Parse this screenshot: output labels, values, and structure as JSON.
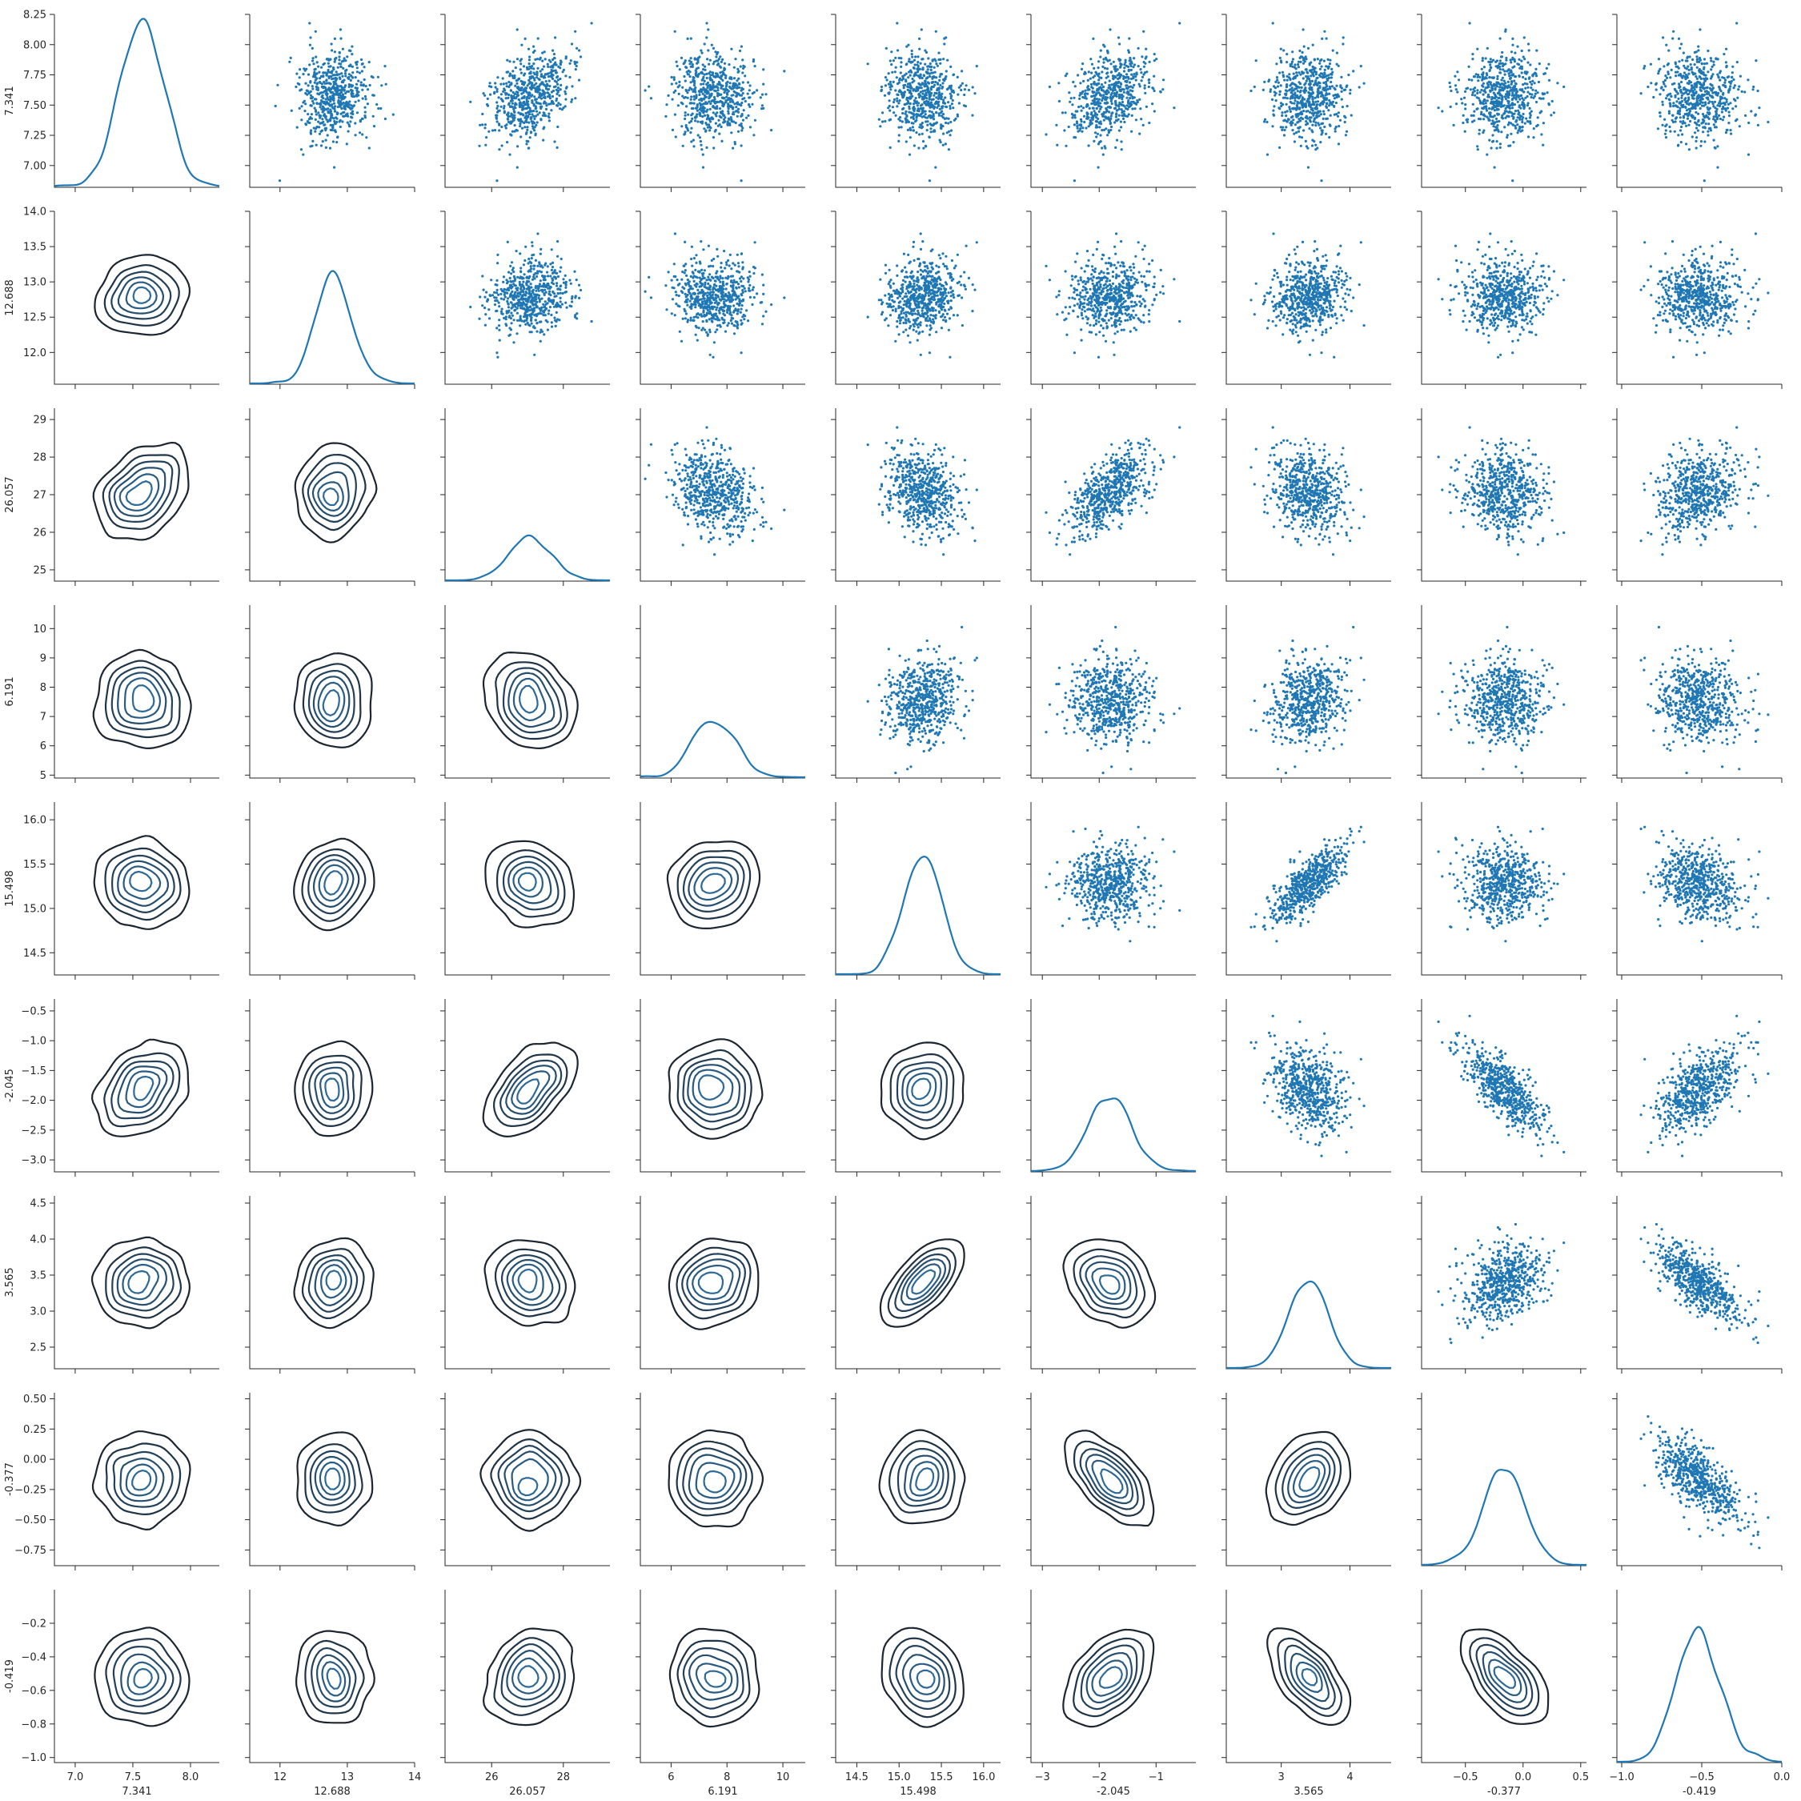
{
  "chart_data": {
    "type": "scatter",
    "variables": [
      {
        "label": "7.341",
        "lim": [
          6.82,
          8.25
        ],
        "ticks": [
          7.0,
          7.5,
          8.0
        ],
        "tick_labels": [
          "7.0",
          "7.5",
          "8.0"
        ],
        "yticks": [
          7.0,
          7.25,
          7.5,
          7.75,
          8.0,
          8.25
        ],
        "ytick_labels": [
          "7.00",
          "7.25",
          "7.50",
          "7.75",
          "8.00",
          "8.25"
        ],
        "mean": 7.58,
        "sd": 0.18
      },
      {
        "label": "12.688",
        "lim": [
          11.55,
          14.0
        ],
        "ticks": [
          12,
          13,
          14
        ],
        "tick_labels": [
          "12",
          "13",
          "14"
        ],
        "yticks": [
          12.0,
          12.5,
          13.0,
          13.5,
          14.0
        ],
        "ytick_labels": [
          "12.0",
          "12.5",
          "13.0",
          "13.5",
          "14.0"
        ],
        "mean": 12.78,
        "sd": 0.28
      },
      {
        "label": "26.057",
        "lim": [
          24.7,
          29.3
        ],
        "ticks": [
          26,
          28
        ],
        "tick_labels": [
          "26",
          "28"
        ],
        "yticks": [
          25,
          26,
          27,
          28,
          29
        ],
        "ytick_labels": [
          "25",
          "26",
          "27",
          "28",
          "29"
        ],
        "mean": 27.1,
        "sd": 0.55
      },
      {
        "label": "6.191",
        "lim": [
          4.9,
          10.8
        ],
        "ticks": [
          6,
          8,
          10
        ],
        "tick_labels": [
          "6",
          "8",
          "10"
        ],
        "yticks": [
          5,
          6,
          7,
          8,
          9,
          10
        ],
        "ytick_labels": [
          "5",
          "6",
          "7",
          "8",
          "9",
          "10"
        ],
        "mean": 7.5,
        "sd": 0.75
      },
      {
        "label": "15.498",
        "lim": [
          14.25,
          16.2
        ],
        "ticks": [
          14.5,
          15.0,
          15.5,
          16.0
        ],
        "tick_labels": [
          "14.5",
          "15.0",
          "15.5",
          "16.0"
        ],
        "yticks": [
          14.5,
          15.0,
          15.5,
          16.0
        ],
        "ytick_labels": [
          "14.5",
          "15.0",
          "15.5",
          "16.0"
        ],
        "mean": 15.28,
        "sd": 0.24
      },
      {
        "label": "-2.045",
        "lim": [
          -3.2,
          -0.3
        ],
        "ticks": [
          -3,
          -2,
          -1
        ],
        "tick_labels": [
          "−3",
          "−2",
          "−1"
        ],
        "yticks": [
          -3.0,
          -2.5,
          -2.0,
          -1.5,
          -1.0,
          -0.5
        ],
        "ytick_labels": [
          "−3.0",
          "−2.5",
          "−2.0",
          "−1.5",
          "−1.0",
          "−0.5"
        ],
        "mean": -1.8,
        "sd": 0.35
      },
      {
        "label": "3.565",
        "lim": [
          2.2,
          4.6
        ],
        "ticks": [
          3,
          4
        ],
        "tick_labels": [
          "3",
          "4"
        ],
        "yticks": [
          2.5,
          3.0,
          3.5,
          4.0,
          4.5
        ],
        "ytick_labels": [
          "2.5",
          "3.0",
          "3.5",
          "4.0",
          "4.5"
        ],
        "mean": 3.4,
        "sd": 0.28
      },
      {
        "label": "-0.377",
        "lim": [
          -0.88,
          0.55
        ],
        "ticks": [
          -0.5,
          0.0,
          0.5
        ],
        "tick_labels": [
          "−0.5",
          "0.0",
          "0.5"
        ],
        "yticks": [
          -0.75,
          -0.5,
          -0.25,
          0.0,
          0.25,
          0.5
        ],
        "ytick_labels": [
          "−0.75",
          "−0.50",
          "−0.25",
          "0.00",
          "0.25",
          "0.50"
        ],
        "mean": -0.17,
        "sd": 0.17
      },
      {
        "label": "-0.419",
        "lim": [
          -1.03,
          0.0
        ],
        "ticks": [
          -1.0,
          -0.5,
          0.0
        ],
        "tick_labels": [
          "−1.0",
          "−0.5",
          "0.0"
        ],
        "yticks": [
          -1.0,
          -0.8,
          -0.6,
          -0.4,
          -0.2
        ],
        "ytick_labels": [
          "−1.0",
          "−0.8",
          "−0.6",
          "−0.4",
          "−0.2"
        ],
        "mean": -0.52,
        "sd": 0.13
      }
    ],
    "correlations": [
      [
        1.0,
        0.0,
        0.45,
        -0.05,
        -0.1,
        0.4,
        -0.05,
        0.0,
        0.0
      ],
      [
        0.0,
        1.0,
        0.0,
        0.0,
        0.3,
        0.0,
        0.2,
        0.0,
        0.0
      ],
      [
        0.45,
        0.0,
        1.0,
        -0.3,
        -0.3,
        0.65,
        -0.25,
        -0.1,
        0.25
      ],
      [
        -0.05,
        0.0,
        -0.3,
        1.0,
        0.2,
        0.0,
        0.2,
        0.0,
        -0.1
      ],
      [
        -0.1,
        0.3,
        -0.3,
        0.2,
        1.0,
        0.0,
        0.85,
        0.0,
        -0.3
      ],
      [
        0.4,
        0.0,
        0.65,
        0.0,
        0.0,
        1.0,
        -0.35,
        -0.8,
        0.6
      ],
      [
        -0.05,
        0.2,
        -0.25,
        0.2,
        0.85,
        -0.35,
        1.0,
        0.35,
        -0.75
      ],
      [
        0.0,
        0.0,
        -0.1,
        0.0,
        0.0,
        -0.8,
        0.35,
        1.0,
        -0.75
      ],
      [
        0.0,
        0.0,
        0.25,
        -0.1,
        -0.3,
        0.6,
        -0.75,
        -0.75,
        1.0
      ]
    ],
    "upper": "scatter",
    "diagonal": "kde",
    "lower": "kde contour",
    "n_points": 600,
    "colors": {
      "scatter": "#1f77b4",
      "kde_line": "#1f77b4",
      "contour_outer": "#1b2631",
      "contour_inner": "#2e6a98",
      "axis": "#262626"
    }
  }
}
